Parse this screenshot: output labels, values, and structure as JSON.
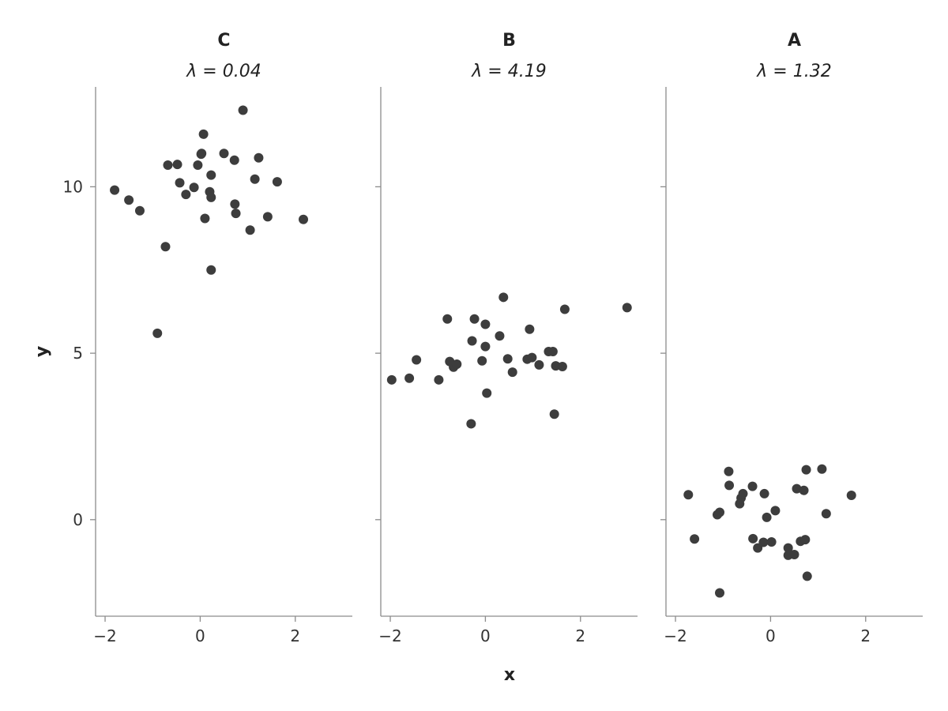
{
  "chart_data": [
    {
      "type": "scatter",
      "title": "C",
      "subtitle": "λ = 0.04",
      "xlim": [
        -2.2,
        3.2
      ],
      "ylim": [
        -2.9,
        13.0
      ],
      "xticks": [
        -2,
        0,
        2
      ],
      "yticks": [
        0,
        5,
        10
      ],
      "grid": false,
      "color": "#3d3d3d",
      "points": [
        [
          -1.8,
          9.9
        ],
        [
          -1.5,
          9.6
        ],
        [
          -1.27,
          9.28
        ],
        [
          -0.9,
          5.6
        ],
        [
          -0.73,
          8.2
        ],
        [
          -0.68,
          10.65
        ],
        [
          -0.48,
          10.67
        ],
        [
          -0.43,
          10.12
        ],
        [
          -0.3,
          9.77
        ],
        [
          -0.13,
          9.98
        ],
        [
          -0.05,
          10.65
        ],
        [
          0.02,
          10.98
        ],
        [
          0.03,
          11.0
        ],
        [
          0.07,
          11.58
        ],
        [
          0.1,
          9.05
        ],
        [
          0.2,
          9.85
        ],
        [
          0.23,
          9.68
        ],
        [
          0.23,
          10.35
        ],
        [
          0.23,
          7.5
        ],
        [
          0.5,
          11.0
        ],
        [
          0.72,
          10.8
        ],
        [
          0.73,
          9.48
        ],
        [
          0.75,
          9.2
        ],
        [
          0.9,
          12.3
        ],
        [
          1.05,
          8.7
        ],
        [
          1.15,
          10.23
        ],
        [
          1.23,
          10.87
        ],
        [
          1.42,
          9.1
        ],
        [
          1.62,
          10.15
        ],
        [
          2.17,
          9.02
        ]
      ]
    },
    {
      "type": "scatter",
      "title": "B",
      "subtitle": "λ = 4.19",
      "xlim": [
        -2.2,
        3.2
      ],
      "ylim": [
        -2.9,
        13.0
      ],
      "xticks": [
        -2,
        0,
        2
      ],
      "yticks": [
        0,
        5,
        10
      ],
      "grid": false,
      "color": "#3d3d3d",
      "points": [
        [
          -1.97,
          4.2
        ],
        [
          -1.6,
          4.25
        ],
        [
          -1.45,
          4.8
        ],
        [
          -0.98,
          4.2
        ],
        [
          -0.8,
          6.03
        ],
        [
          -0.75,
          4.75
        ],
        [
          -0.67,
          4.58
        ],
        [
          -0.6,
          4.67
        ],
        [
          -0.3,
          2.88
        ],
        [
          -0.28,
          5.37
        ],
        [
          -0.23,
          6.03
        ],
        [
          -0.07,
          4.77
        ],
        [
          0.0,
          5.87
        ],
        [
          0.0,
          5.2
        ],
        [
          0.03,
          3.8
        ],
        [
          0.3,
          5.52
        ],
        [
          0.38,
          6.68
        ],
        [
          0.47,
          4.83
        ],
        [
          0.57,
          4.43
        ],
        [
          0.88,
          4.82
        ],
        [
          0.93,
          5.72
        ],
        [
          0.98,
          4.87
        ],
        [
          1.13,
          4.65
        ],
        [
          1.33,
          5.05
        ],
        [
          1.42,
          5.05
        ],
        [
          1.45,
          3.17
        ],
        [
          1.48,
          4.62
        ],
        [
          1.62,
          4.6
        ],
        [
          1.67,
          6.32
        ],
        [
          2.98,
          6.37
        ]
      ]
    },
    {
      "type": "scatter",
      "title": "A",
      "subtitle": "λ = 1.32",
      "xlim": [
        -2.2,
        3.2
      ],
      "ylim": [
        -2.9,
        13.0
      ],
      "xticks": [
        -2,
        0,
        2
      ],
      "yticks": [
        0,
        5,
        10
      ],
      "grid": false,
      "color": "#3d3d3d",
      "points": [
        [
          -1.73,
          0.75
        ],
        [
          -1.6,
          -0.58
        ],
        [
          -1.12,
          0.15
        ],
        [
          -1.07,
          0.22
        ],
        [
          -1.07,
          -2.2
        ],
        [
          -0.88,
          1.45
        ],
        [
          -0.87,
          1.03
        ],
        [
          -0.65,
          0.48
        ],
        [
          -0.62,
          0.65
        ],
        [
          -0.58,
          0.78
        ],
        [
          -0.38,
          1.0
        ],
        [
          -0.37,
          -0.57
        ],
        [
          -0.27,
          -0.85
        ],
        [
          -0.15,
          -0.68
        ],
        [
          -0.13,
          0.78
        ],
        [
          -0.08,
          0.07
        ],
        [
          0.02,
          -0.67
        ],
        [
          0.1,
          0.27
        ],
        [
          0.37,
          -0.85
        ],
        [
          0.37,
          -1.07
        ],
        [
          0.5,
          -1.05
        ],
        [
          0.55,
          0.93
        ],
        [
          0.63,
          -0.65
        ],
        [
          0.7,
          0.88
        ],
        [
          0.73,
          -0.6
        ],
        [
          0.75,
          1.5
        ],
        [
          0.77,
          -1.7
        ],
        [
          1.08,
          1.52
        ],
        [
          1.17,
          0.18
        ],
        [
          1.7,
          0.73
        ]
      ]
    }
  ],
  "shared": {
    "xlabel": "x",
    "ylabel": "y"
  }
}
